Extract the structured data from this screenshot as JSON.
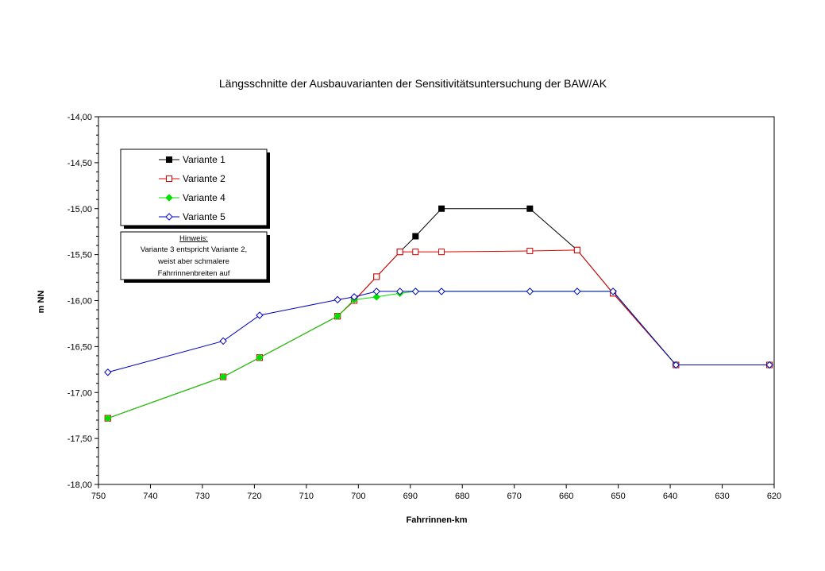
{
  "chart_data": {
    "type": "line",
    "title": "Längsschnitte der Ausbauvarianten der Sensitivitätsuntersuchung der BAW/AK",
    "xlabel": "Fahrrinnen-km",
    "ylabel": "m NN",
    "xlim": [
      750,
      620
    ],
    "ylim": [
      -18,
      -14
    ],
    "xticks": [
      "750",
      "740",
      "730",
      "720",
      "710",
      "700",
      "690",
      "680",
      "670",
      "660",
      "650",
      "640",
      "630",
      "620"
    ],
    "yticks": [
      "-14,00",
      "-14,50",
      "-15,00",
      "-15,50",
      "-16,00",
      "-16,50",
      "-17,00",
      "-17,50",
      "-18,00"
    ],
    "x": [
      748.2,
      726.0,
      719.0,
      704.0,
      700.8,
      696.5,
      692.0,
      689.0,
      684.0,
      667.0,
      657.9,
      651.0,
      638.9,
      620.9
    ],
    "series": [
      {
        "name": "Variante 1",
        "color": "#000000",
        "marker": "square-filled",
        "values": [
          -17.28,
          -16.83,
          -16.62,
          -16.17,
          -16.0,
          -15.74,
          -15.47,
          -15.3,
          -15.0,
          -15.0,
          -15.45,
          -15.92,
          -16.7,
          -16.7
        ]
      },
      {
        "name": "Variante 2",
        "color": "#e00000",
        "marker": "square-open",
        "values": [
          -17.28,
          -16.83,
          -16.62,
          -16.17,
          -16.0,
          -15.74,
          -15.47,
          -15.47,
          -15.47,
          -15.46,
          -15.45,
          -15.92,
          -16.7,
          -16.7
        ]
      },
      {
        "name": "Variante 4",
        "color": "#00e000",
        "marker": "diamond-filled",
        "values": [
          -17.28,
          -16.83,
          -16.62,
          -16.17,
          -15.99,
          -15.96,
          -15.92,
          -15.9,
          -15.9,
          -15.9,
          -15.9,
          -15.9,
          -16.7,
          -16.7
        ]
      },
      {
        "name": "Variante 5",
        "color": "#0000c0",
        "marker": "diamond-open",
        "values": [
          -16.78,
          -16.44,
          -16.16,
          -15.99,
          -15.96,
          -15.9,
          -15.9,
          -15.9,
          -15.9,
          -15.9,
          -15.9,
          -15.9,
          -16.7,
          -16.7
        ]
      }
    ],
    "legend": "top-left",
    "grid": false,
    "annotation": {
      "heading": "Hinweis:",
      "lines": [
        "Variante 3 entspricht Variante 2,",
        "weist aber schmalere",
        "Fahrrinnenbreiten auf"
      ]
    }
  }
}
